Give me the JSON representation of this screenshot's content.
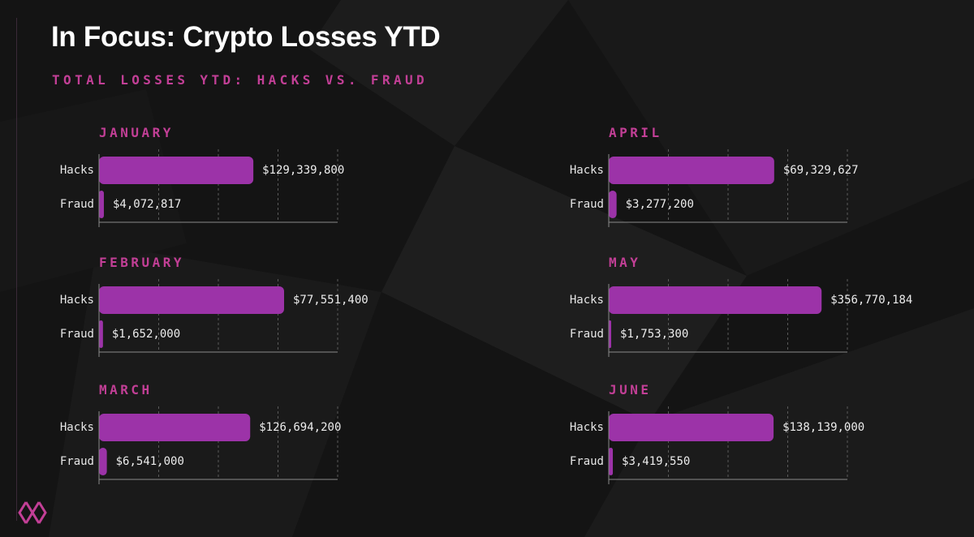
{
  "title": "In Focus: Crypto Losses YTD",
  "subtitle": "TOTAL LOSSES YTD: HACKS VS. FRAUD",
  "logo_icon": "brand-logo-icon",
  "colors": {
    "background": "#141414",
    "accent": "#c23f96",
    "bar": "#9c33a8",
    "text": "#ffffff"
  },
  "chart_data": [
    {
      "type": "bar",
      "orientation": "horizontal",
      "title": "JANUARY",
      "categories": [
        "Hacks",
        "Fraud"
      ],
      "values": [
        129339800,
        4072817
      ],
      "value_labels": [
        "$129,339,800",
        "$4,072,817"
      ],
      "xlim": [
        0,
        200000000
      ],
      "grid": true
    },
    {
      "type": "bar",
      "orientation": "horizontal",
      "title": "FEBRUARY",
      "categories": [
        "Hacks",
        "Fraud"
      ],
      "values": [
        77551400,
        1652000
      ],
      "value_labels": [
        "$77,551,400",
        "$1,652,000"
      ],
      "xlim": [
        0,
        100000000
      ],
      "grid": true
    },
    {
      "type": "bar",
      "orientation": "horizontal",
      "title": "MARCH",
      "categories": [
        "Hacks",
        "Fraud"
      ],
      "values": [
        126694200,
        6541000
      ],
      "value_labels": [
        "$126,694,200",
        "$6,541,000"
      ],
      "xlim": [
        0,
        200000000
      ],
      "grid": true
    },
    {
      "type": "bar",
      "orientation": "horizontal",
      "title": "APRIL",
      "categories": [
        "Hacks",
        "Fraud"
      ],
      "values": [
        69329627,
        3277200
      ],
      "value_labels": [
        "$69,329,627",
        "$3,277,200"
      ],
      "xlim": [
        0,
        100000000
      ],
      "grid": true
    },
    {
      "type": "bar",
      "orientation": "horizontal",
      "title": "MAY",
      "categories": [
        "Hacks",
        "Fraud"
      ],
      "values": [
        356770184,
        1753300
      ],
      "value_labels": [
        "$356,770,184",
        "$1,753,300"
      ],
      "xlim": [
        0,
        400000000
      ],
      "grid": true
    },
    {
      "type": "bar",
      "orientation": "horizontal",
      "title": "JUNE",
      "categories": [
        "Hacks",
        "Fraud"
      ],
      "values": [
        138139000,
        3419550
      ],
      "value_labels": [
        "$138,139,000",
        "$3,419,550"
      ],
      "xlim": [
        0,
        200000000
      ],
      "grid": true
    }
  ]
}
